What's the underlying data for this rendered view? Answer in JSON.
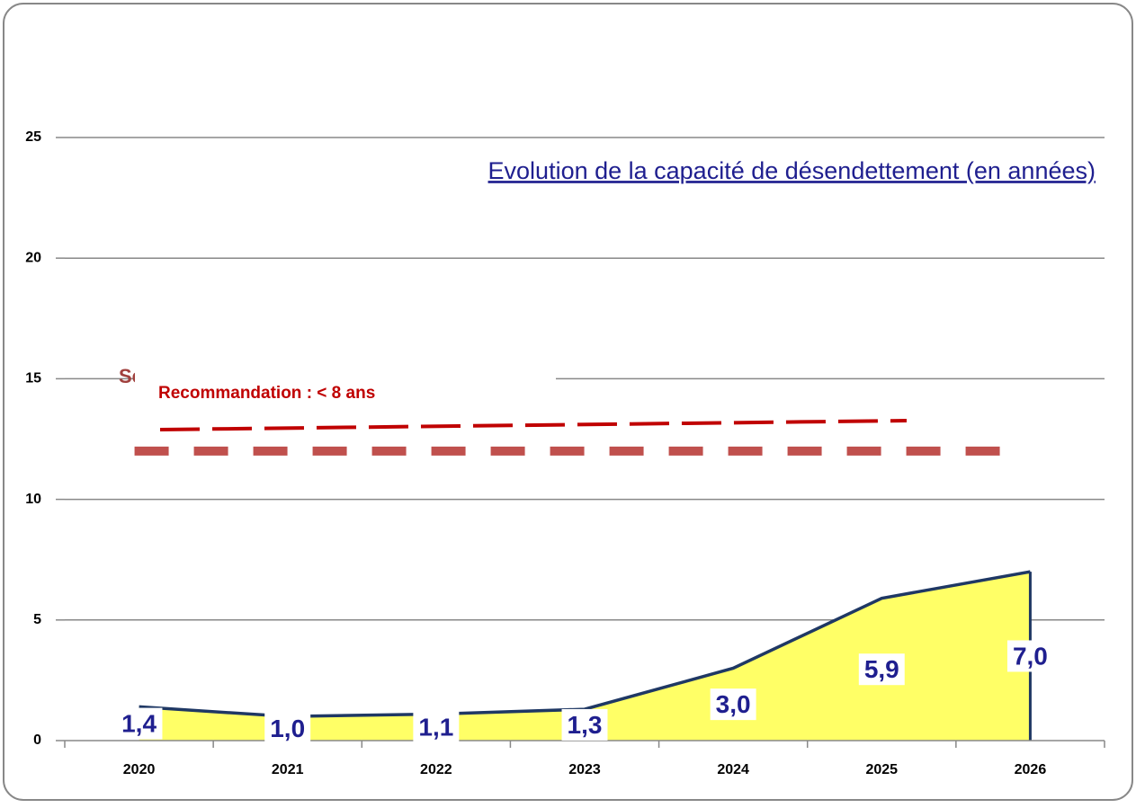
{
  "chart_data": {
    "type": "area",
    "title": "Evolution de la capacité de désendettement (en années)",
    "categories": [
      "2020",
      "2021",
      "2022",
      "2023",
      "2024",
      "2025",
      "2026"
    ],
    "values": [
      1.4,
      1.0,
      1.1,
      1.3,
      3.0,
      5.9,
      7.0
    ],
    "value_labels": [
      "1,4",
      "1,0",
      "1,1",
      "1,3",
      "3,0",
      "5,9",
      "7,0"
    ],
    "color": "#ffff66",
    "line_color": "#1f3864",
    "ylim": [
      0,
      25
    ],
    "yticks": [
      0,
      5,
      10,
      15,
      20,
      25
    ],
    "grid": true,
    "reference_lines": [
      {
        "value": 12,
        "color": "#c0504d"
      }
    ],
    "annotations": [
      "Se",
      "Recommandation : < 8 ans"
    ]
  }
}
